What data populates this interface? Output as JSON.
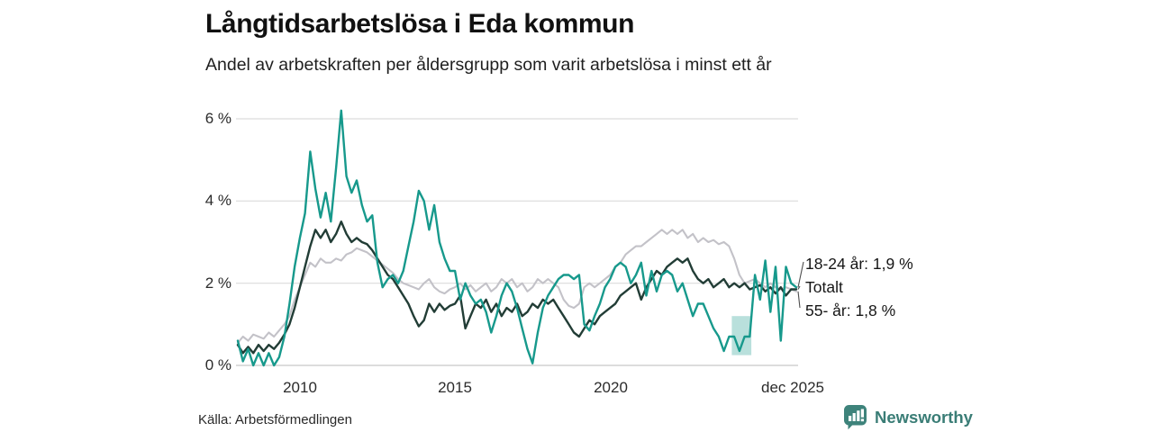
{
  "page": {
    "title": "Långtidsarbetslösa i Eda kommun",
    "subtitle": "Andel av arbetskraften per åldersgrupp som varit arbetslösa i minst ett år",
    "source": "Källa: Arbetsförmedlingen",
    "brand": "Newsworthy"
  },
  "chart_data": {
    "type": "line",
    "title": "Långtidsarbetslösa i Eda kommun",
    "subtitle": "Andel av arbetskraften per åldersgrupp som varit arbetslösa i minst ett år",
    "unit": "%",
    "grid": true,
    "x_start": 2008,
    "x_step_years": 0.1666667,
    "x_end": 2026,
    "xlim": [
      2008,
      2026
    ],
    "ylim": [
      0,
      6.4
    ],
    "yticks": [
      {
        "v": 6,
        "label": "6 %"
      },
      {
        "v": 4,
        "label": "4 %"
      },
      {
        "v": 2,
        "label": "2 %"
      },
      {
        "v": 0,
        "label": "0 %"
      }
    ],
    "xticks": [
      {
        "v": 2010,
        "label": "2010"
      },
      {
        "v": 2015,
        "label": "2015"
      },
      {
        "v": 2020,
        "label": "2020"
      },
      {
        "v": 2025.92,
        "label": "dec 2025"
      }
    ],
    "series": [
      {
        "name": "55- år",
        "color": "#c3c2c8",
        "width": 2.1,
        "end_value": "1,8 %",
        "values": [
          0.55,
          0.7,
          0.6,
          0.75,
          0.7,
          0.65,
          0.8,
          0.7,
          0.85,
          1.0,
          1.2,
          1.6,
          1.9,
          2.2,
          2.5,
          2.4,
          2.6,
          2.5,
          2.5,
          2.6,
          2.55,
          2.7,
          2.75,
          2.85,
          2.8,
          2.75,
          2.65,
          2.55,
          2.45,
          2.35,
          2.25,
          2.1,
          2.0,
          1.95,
          1.9,
          1.85,
          2.0,
          2.1,
          1.9,
          1.8,
          1.75,
          1.85,
          1.9,
          2.0,
          1.85,
          1.95,
          1.8,
          1.9,
          2.0,
          1.8,
          1.9,
          2.1,
          2.0,
          2.1,
          1.9,
          2.0,
          1.8,
          1.9,
          2.1,
          2.0,
          2.1,
          2.0,
          1.9,
          1.6,
          1.45,
          1.4,
          1.5,
          1.9,
          2.0,
          1.9,
          2.0,
          2.1,
          2.2,
          2.4,
          2.5,
          2.7,
          2.8,
          2.9,
          2.9,
          3.0,
          3.1,
          3.2,
          3.3,
          3.2,
          3.3,
          3.2,
          3.3,
          3.1,
          3.2,
          3.0,
          3.1,
          3.0,
          3.05,
          2.95,
          3.0,
          2.9,
          2.6,
          2.2,
          2.0,
          2.05,
          2.1,
          2.0,
          1.9,
          2.0,
          1.9,
          1.85,
          1.9,
          1.85,
          1.8
        ]
      },
      {
        "name": "Totalt",
        "color": "#223d36",
        "width": 2.4,
        "end_value": "",
        "values": [
          0.5,
          0.3,
          0.45,
          0.3,
          0.5,
          0.35,
          0.5,
          0.4,
          0.55,
          0.75,
          1.0,
          1.4,
          1.9,
          2.4,
          2.9,
          3.3,
          3.1,
          3.3,
          3.0,
          3.2,
          3.5,
          3.2,
          3.0,
          3.1,
          3.0,
          2.95,
          2.8,
          2.6,
          2.4,
          2.2,
          2.1,
          1.9,
          1.7,
          1.5,
          1.2,
          0.95,
          1.1,
          1.5,
          1.3,
          1.5,
          1.35,
          1.45,
          1.5,
          1.7,
          0.9,
          1.2,
          1.5,
          1.4,
          1.6,
          1.3,
          1.5,
          1.2,
          1.4,
          1.3,
          1.5,
          1.2,
          1.3,
          1.5,
          1.4,
          1.6,
          1.5,
          1.6,
          1.4,
          1.2,
          1.0,
          0.8,
          0.7,
          0.9,
          1.1,
          1.0,
          1.2,
          1.3,
          1.4,
          1.5,
          1.7,
          1.8,
          1.9,
          2.0,
          1.6,
          1.9,
          2.1,
          2.3,
          2.2,
          2.4,
          2.5,
          2.6,
          2.5,
          2.6,
          2.3,
          2.1,
          2.0,
          2.1,
          1.9,
          2.0,
          2.1,
          1.9,
          2.0,
          1.9,
          2.0,
          1.85,
          1.9,
          1.95,
          1.8,
          1.9,
          1.75,
          1.9,
          1.7,
          1.85,
          1.85
        ]
      },
      {
        "name": "18-24 år",
        "color": "#17998c",
        "width": 2.4,
        "end_value": "1,9 %",
        "values": [
          0.6,
          0.1,
          0.4,
          0.0,
          0.3,
          0.0,
          0.3,
          0.0,
          0.2,
          0.7,
          1.5,
          2.4,
          3.1,
          3.7,
          5.2,
          4.3,
          3.6,
          4.2,
          3.5,
          4.8,
          6.2,
          4.6,
          4.2,
          4.5,
          3.9,
          3.5,
          3.65,
          2.5,
          1.9,
          2.1,
          2.2,
          2.0,
          2.3,
          2.9,
          3.5,
          4.25,
          4.0,
          3.3,
          3.9,
          3.0,
          2.6,
          2.3,
          2.3,
          1.6,
          2.0,
          1.7,
          1.5,
          1.6,
          1.3,
          0.8,
          1.2,
          1.7,
          2.0,
          1.8,
          1.4,
          0.9,
          0.4,
          0.05,
          0.8,
          1.4,
          1.7,
          1.9,
          2.1,
          2.2,
          2.2,
          2.1,
          2.2,
          1.0,
          0.85,
          1.2,
          1.5,
          1.9,
          2.1,
          2.4,
          2.5,
          2.4,
          2.0,
          2.2,
          2.5,
          1.7,
          2.3,
          1.8,
          2.2,
          2.3,
          2.2,
          1.8,
          2.0,
          1.6,
          1.2,
          1.5,
          1.5,
          1.2,
          0.9,
          0.7,
          0.35,
          0.7,
          0.7,
          0.35,
          0.7,
          0.7,
          2.2,
          1.6,
          2.55,
          1.3,
          2.4,
          0.6,
          2.4,
          2.0,
          1.9
        ]
      }
    ],
    "band": {
      "x0": 2023.92,
      "x1": 2024.55,
      "y0": 0.25,
      "y1": 1.2,
      "color": "#17998c",
      "opacity": 0.3
    },
    "annotations": [
      {
        "text": "18-24 år: 1,9 %",
        "series": "18-24 år"
      },
      {
        "text": "Totalt",
        "series": "Totalt"
      },
      {
        "text": "55- år: 1,8 %",
        "series": "55- år"
      }
    ]
  }
}
